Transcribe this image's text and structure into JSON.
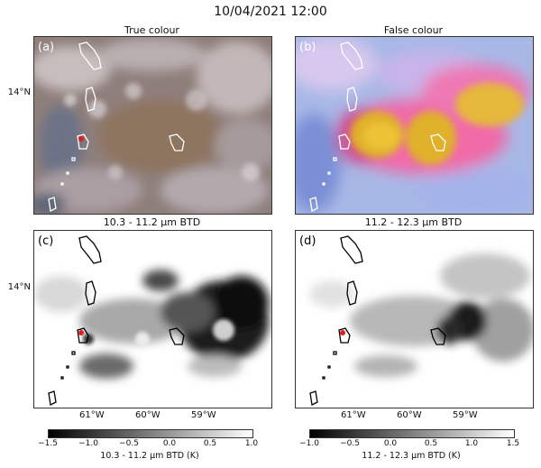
{
  "header": {
    "datetime": "10/04/2021 12:00"
  },
  "panels": [
    {
      "title": "True colour",
      "label": "(a)"
    },
    {
      "title": "False colour",
      "label": "(b)"
    },
    {
      "title": "10.3 - 11.2 µm BTD",
      "label": "(c)"
    },
    {
      "title": "11.2 - 12.3 µm BTD",
      "label": "(d)"
    }
  ],
  "axes": {
    "lat_tick": "14°N",
    "lon_ticks": [
      "61°W",
      "60°W",
      "59°W"
    ]
  },
  "colorbars": [
    {
      "ticks": [
        "−1.5",
        "−1.0",
        "−0.5",
        "0.0",
        "0.5",
        "1.0"
      ],
      "label": "10.3 - 11.2 µm BTD (K)"
    },
    {
      "ticks": [
        "−1.0",
        "−0.5",
        "0.0",
        "0.5",
        "1.0",
        "1.5"
      ],
      "label": "11.2 - 12.3 µm BTD (K)"
    }
  ],
  "colors": {
    "true_colour_bg": "#8f7f7b",
    "false_colour_bg": "#a8b8e6",
    "ash_yellow": "#e0b12a",
    "ash_pink": "#f06aa8",
    "volcano_marker": "#e01e1e"
  }
}
